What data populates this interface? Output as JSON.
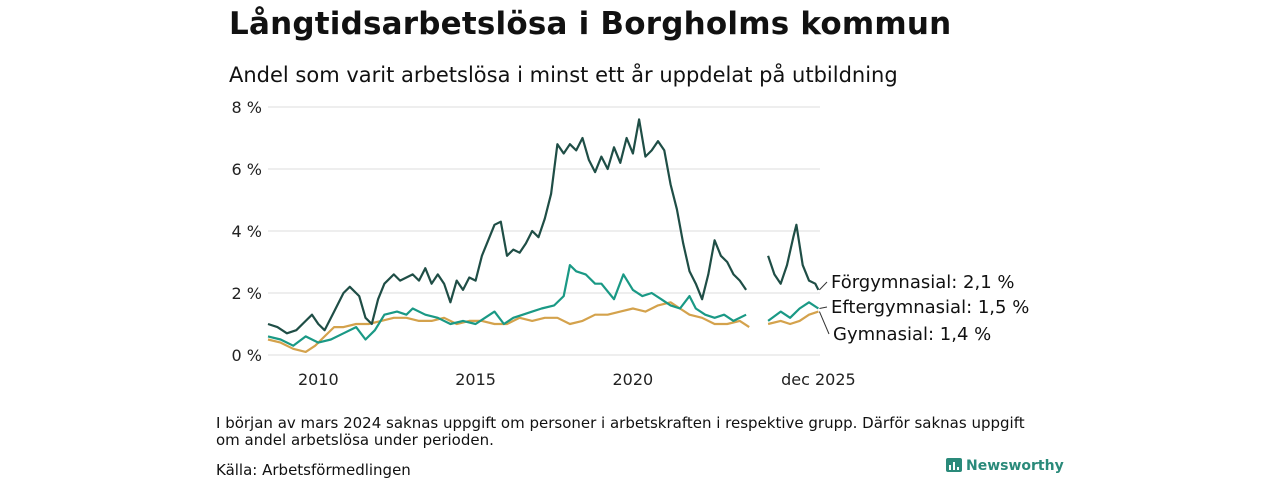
{
  "title": "Långtidsarbetslösa i Borgholms kommun",
  "subtitle": "Andel som varit arbetslösa i minst ett år uppdelat på utbildning",
  "note": "I början av mars 2024 saknas uppgift om personer i arbetskraften i respektive grupp. Därför saknas uppgift om andel arbetslösa under perioden.",
  "source": "Källa: Arbetsförmedlingen",
  "brand": "Newsworthy",
  "colors": {
    "forgymnasial": "#1f4e46",
    "eftergymnasial": "#1a9985",
    "gymnasial": "#d4a24c",
    "grid": "#dddddd"
  },
  "chart_data": {
    "type": "line",
    "title": "Långtidsarbetslösa i Borgholms kommun",
    "ylabel": "",
    "xlabel": "",
    "ylim": [
      0,
      8
    ],
    "xlim": [
      2008.4,
      2025.95
    ],
    "yticks": [
      0,
      2,
      4,
      6,
      8
    ],
    "ytick_labels": [
      "0 %",
      "2 %",
      "4 %",
      "6 %",
      "8 %"
    ],
    "xticks": [
      2010,
      2015,
      2020,
      2025.9
    ],
    "xtick_labels": [
      "2010",
      "2015",
      "2020",
      "dec 2025"
    ],
    "gap": [
      2023.75,
      2024.25
    ],
    "series": [
      {
        "name": "Förgymnasial",
        "color_key": "forgymnasial",
        "end_label": "Förgymnasial: 2,1 %",
        "points": [
          [
            2008.4,
            1.0
          ],
          [
            2008.7,
            0.9
          ],
          [
            2009.0,
            0.7
          ],
          [
            2009.3,
            0.8
          ],
          [
            2009.6,
            1.1
          ],
          [
            2009.8,
            1.3
          ],
          [
            2010.0,
            1.0
          ],
          [
            2010.2,
            0.8
          ],
          [
            2010.5,
            1.4
          ],
          [
            2010.8,
            2.0
          ],
          [
            2011.0,
            2.2
          ],
          [
            2011.3,
            1.9
          ],
          [
            2011.5,
            1.2
          ],
          [
            2011.7,
            1.0
          ],
          [
            2011.9,
            1.8
          ],
          [
            2012.1,
            2.3
          ],
          [
            2012.4,
            2.6
          ],
          [
            2012.6,
            2.4
          ],
          [
            2012.8,
            2.5
          ],
          [
            2013.0,
            2.6
          ],
          [
            2013.2,
            2.4
          ],
          [
            2013.4,
            2.8
          ],
          [
            2013.6,
            2.3
          ],
          [
            2013.8,
            2.6
          ],
          [
            2014.0,
            2.3
          ],
          [
            2014.2,
            1.7
          ],
          [
            2014.4,
            2.4
          ],
          [
            2014.6,
            2.1
          ],
          [
            2014.8,
            2.5
          ],
          [
            2015.0,
            2.4
          ],
          [
            2015.2,
            3.2
          ],
          [
            2015.4,
            3.7
          ],
          [
            2015.6,
            4.2
          ],
          [
            2015.8,
            4.3
          ],
          [
            2016.0,
            3.2
          ],
          [
            2016.2,
            3.4
          ],
          [
            2016.4,
            3.3
          ],
          [
            2016.6,
            3.6
          ],
          [
            2016.8,
            4.0
          ],
          [
            2017.0,
            3.8
          ],
          [
            2017.2,
            4.4
          ],
          [
            2017.4,
            5.2
          ],
          [
            2017.6,
            6.8
          ],
          [
            2017.8,
            6.5
          ],
          [
            2018.0,
            6.8
          ],
          [
            2018.2,
            6.6
          ],
          [
            2018.4,
            7.0
          ],
          [
            2018.6,
            6.3
          ],
          [
            2018.8,
            5.9
          ],
          [
            2019.0,
            6.4
          ],
          [
            2019.2,
            6.0
          ],
          [
            2019.4,
            6.7
          ],
          [
            2019.6,
            6.2
          ],
          [
            2019.8,
            7.0
          ],
          [
            2020.0,
            6.5
          ],
          [
            2020.2,
            7.6
          ],
          [
            2020.4,
            6.4
          ],
          [
            2020.6,
            6.6
          ],
          [
            2020.8,
            6.9
          ],
          [
            2021.0,
            6.6
          ],
          [
            2021.2,
            5.5
          ],
          [
            2021.4,
            4.7
          ],
          [
            2021.6,
            3.6
          ],
          [
            2021.8,
            2.7
          ],
          [
            2022.0,
            2.3
          ],
          [
            2022.2,
            1.8
          ],
          [
            2022.4,
            2.6
          ],
          [
            2022.6,
            3.7
          ],
          [
            2022.8,
            3.2
          ],
          [
            2023.0,
            3.0
          ],
          [
            2023.2,
            2.6
          ],
          [
            2023.4,
            2.4
          ],
          [
            2023.6,
            2.1
          ],
          [
            2024.3,
            3.2
          ],
          [
            2024.5,
            2.6
          ],
          [
            2024.7,
            2.3
          ],
          [
            2024.9,
            2.9
          ],
          [
            2025.1,
            3.8
          ],
          [
            2025.2,
            4.2
          ],
          [
            2025.4,
            2.9
          ],
          [
            2025.6,
            2.4
          ],
          [
            2025.8,
            2.3
          ],
          [
            2025.9,
            2.1
          ]
        ]
      },
      {
        "name": "Eftergymnasial",
        "color_key": "eftergymnasial",
        "end_label": "Eftergymnasial: 1,5 %",
        "points": [
          [
            2008.4,
            0.6
          ],
          [
            2008.8,
            0.5
          ],
          [
            2009.2,
            0.3
          ],
          [
            2009.6,
            0.6
          ],
          [
            2010.0,
            0.4
          ],
          [
            2010.4,
            0.5
          ],
          [
            2010.8,
            0.7
          ],
          [
            2011.2,
            0.9
          ],
          [
            2011.5,
            0.5
          ],
          [
            2011.8,
            0.8
          ],
          [
            2012.1,
            1.3
          ],
          [
            2012.5,
            1.4
          ],
          [
            2012.8,
            1.3
          ],
          [
            2013.0,
            1.5
          ],
          [
            2013.4,
            1.3
          ],
          [
            2013.8,
            1.2
          ],
          [
            2014.2,
            1.0
          ],
          [
            2014.6,
            1.1
          ],
          [
            2015.0,
            1.0
          ],
          [
            2015.3,
            1.2
          ],
          [
            2015.6,
            1.4
          ],
          [
            2015.9,
            1.0
          ],
          [
            2016.2,
            1.2
          ],
          [
            2016.5,
            1.3
          ],
          [
            2016.8,
            1.4
          ],
          [
            2017.1,
            1.5
          ],
          [
            2017.5,
            1.6
          ],
          [
            2017.8,
            1.9
          ],
          [
            2018.0,
            2.9
          ],
          [
            2018.2,
            2.7
          ],
          [
            2018.5,
            2.6
          ],
          [
            2018.8,
            2.3
          ],
          [
            2019.0,
            2.3
          ],
          [
            2019.4,
            1.8
          ],
          [
            2019.7,
            2.6
          ],
          [
            2020.0,
            2.1
          ],
          [
            2020.3,
            1.9
          ],
          [
            2020.6,
            2.0
          ],
          [
            2020.9,
            1.8
          ],
          [
            2021.2,
            1.6
          ],
          [
            2021.5,
            1.5
          ],
          [
            2021.8,
            1.9
          ],
          [
            2022.0,
            1.5
          ],
          [
            2022.3,
            1.3
          ],
          [
            2022.6,
            1.2
          ],
          [
            2022.9,
            1.3
          ],
          [
            2023.2,
            1.1
          ],
          [
            2023.6,
            1.3
          ],
          [
            2024.3,
            1.1
          ],
          [
            2024.7,
            1.4
          ],
          [
            2025.0,
            1.2
          ],
          [
            2025.3,
            1.5
          ],
          [
            2025.6,
            1.7
          ],
          [
            2025.9,
            1.5
          ]
        ]
      },
      {
        "name": "Gymnasial",
        "color_key": "gymnasial",
        "end_label": "Gymnasial: 1,4 %",
        "points": [
          [
            2008.4,
            0.5
          ],
          [
            2008.8,
            0.4
          ],
          [
            2009.2,
            0.2
          ],
          [
            2009.6,
            0.1
          ],
          [
            2009.9,
            0.3
          ],
          [
            2010.2,
            0.6
          ],
          [
            2010.5,
            0.9
          ],
          [
            2010.8,
            0.9
          ],
          [
            2011.2,
            1.0
          ],
          [
            2011.6,
            1.0
          ],
          [
            2012.0,
            1.1
          ],
          [
            2012.4,
            1.2
          ],
          [
            2012.8,
            1.2
          ],
          [
            2013.2,
            1.1
          ],
          [
            2013.6,
            1.1
          ],
          [
            2014.0,
            1.2
          ],
          [
            2014.4,
            1.0
          ],
          [
            2014.8,
            1.1
          ],
          [
            2015.2,
            1.1
          ],
          [
            2015.6,
            1.0
          ],
          [
            2016.0,
            1.0
          ],
          [
            2016.4,
            1.2
          ],
          [
            2016.8,
            1.1
          ],
          [
            2017.2,
            1.2
          ],
          [
            2017.6,
            1.2
          ],
          [
            2018.0,
            1.0
          ],
          [
            2018.4,
            1.1
          ],
          [
            2018.8,
            1.3
          ],
          [
            2019.2,
            1.3
          ],
          [
            2019.6,
            1.4
          ],
          [
            2020.0,
            1.5
          ],
          [
            2020.4,
            1.4
          ],
          [
            2020.8,
            1.6
          ],
          [
            2021.2,
            1.7
          ],
          [
            2021.5,
            1.5
          ],
          [
            2021.8,
            1.3
          ],
          [
            2022.2,
            1.2
          ],
          [
            2022.6,
            1.0
          ],
          [
            2023.0,
            1.0
          ],
          [
            2023.4,
            1.1
          ],
          [
            2023.7,
            0.9
          ],
          [
            2024.3,
            1.0
          ],
          [
            2024.7,
            1.1
          ],
          [
            2025.0,
            1.0
          ],
          [
            2025.3,
            1.1
          ],
          [
            2025.6,
            1.3
          ],
          [
            2025.9,
            1.4
          ]
        ]
      }
    ]
  }
}
